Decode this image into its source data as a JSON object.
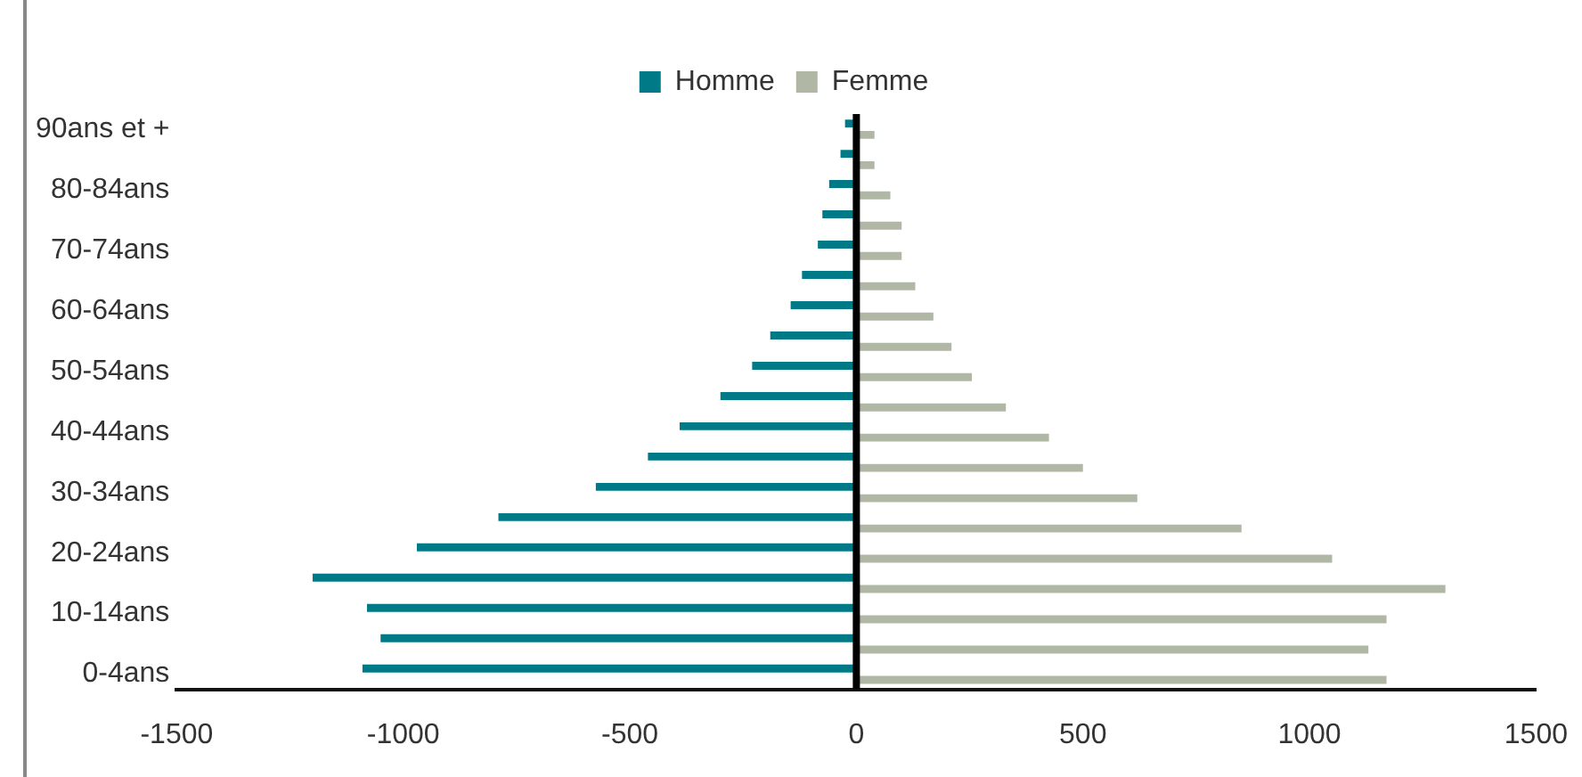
{
  "chart_data": {
    "type": "bar",
    "orientation": "horizontal",
    "categories": [
      "90ans et +",
      null,
      "80-84ans",
      null,
      "70-74ans",
      null,
      "60-64ans",
      null,
      "50-54ans",
      null,
      "40-44ans",
      null,
      "30-34ans",
      null,
      "20-24ans",
      null,
      "10-14ans",
      null,
      "0-4ans"
    ],
    "series": [
      {
        "name": "Homme",
        "color": "#007a87",
        "values": [
          -25,
          -35,
          -60,
          -75,
          -85,
          -120,
          -145,
          -190,
          -230,
          -300,
          -390,
          -460,
          -575,
          -790,
          -970,
          -1200,
          -1080,
          -1050,
          -1090
        ]
      },
      {
        "name": "Femme",
        "color": "#b1b7a5",
        "values": [
          40,
          40,
          75,
          100,
          100,
          130,
          170,
          210,
          255,
          330,
          425,
          500,
          620,
          850,
          1050,
          1300,
          1170,
          1130,
          1170
        ]
      }
    ],
    "xlim": [
      -1500,
      1500
    ],
    "xticks": [
      -1500,
      -1000,
      -500,
      0,
      500,
      1000,
      1500
    ],
    "ref_lines": [
      {
        "axis": "x",
        "value": 0,
        "color": "#000000"
      }
    ],
    "grid": false,
    "legend": "top"
  }
}
